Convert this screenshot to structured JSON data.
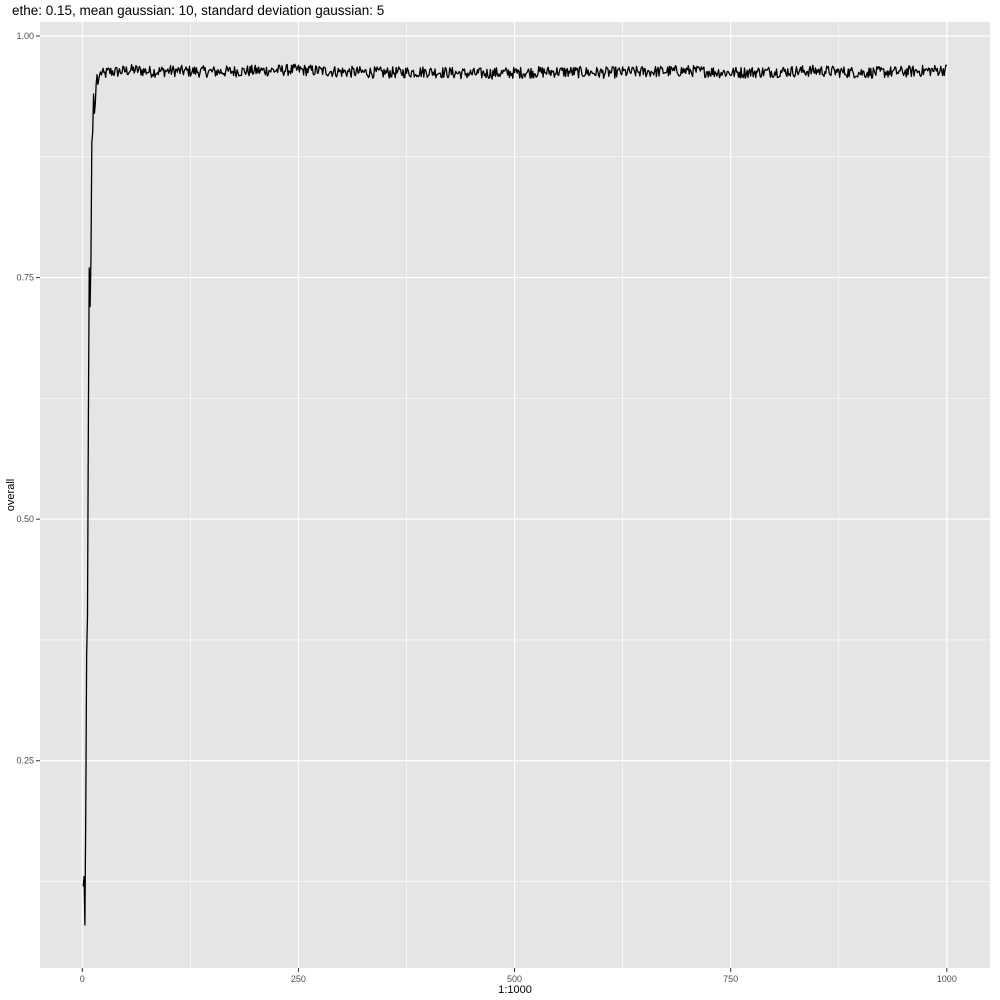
{
  "chart_data": {
    "type": "line",
    "title": "ethe: 0.15, mean gaussian: 10, standard deviation gaussian: 5",
    "xlabel": "1:1000",
    "ylabel": "overall",
    "xlim": [
      1,
      1000
    ],
    "ylim": [
      0.08,
      0.97
    ],
    "x_ticks": [
      0,
      250,
      500,
      750,
      1000
    ],
    "x_tick_labels": [
      "0",
      "250",
      "500",
      "750",
      "1000"
    ],
    "y_ticks": [
      0.25,
      0.5,
      0.75,
      1.0
    ],
    "y_tick_labels": [
      "0.25",
      "0.50",
      "0.75",
      "1.00"
    ],
    "grid": true,
    "legend": "none",
    "colors": {
      "panel": "#e5e5e5",
      "grid": "#ffffff",
      "line": "#000000"
    },
    "series": [
      {
        "anchors_x": [
          1,
          2,
          3,
          4,
          5,
          6,
          7,
          8,
          9,
          10,
          11,
          12,
          13,
          14,
          15,
          16,
          17,
          18,
          19,
          20,
          22,
          25,
          30,
          40,
          60,
          80,
          100,
          150,
          200,
          250,
          300,
          350,
          400,
          450,
          500,
          550,
          600,
          650,
          700,
          750,
          800,
          850,
          900,
          950,
          1000
        ],
        "anchors_y": [
          0.12,
          0.13,
          0.08,
          0.2,
          0.36,
          0.4,
          0.6,
          0.76,
          0.72,
          0.77,
          0.89,
          0.9,
          0.94,
          0.92,
          0.93,
          0.95,
          0.96,
          0.95,
          0.955,
          0.96,
          0.962,
          0.96,
          0.963,
          0.963,
          0.965,
          0.963,
          0.964,
          0.963,
          0.964,
          0.965,
          0.963,
          0.962,
          0.963,
          0.961,
          0.962,
          0.963,
          0.962,
          0.963,
          0.964,
          0.962,
          0.963,
          0.964,
          0.962,
          0.963,
          0.965
        ],
        "noise_from_x": 20,
        "noise_amplitude": 0.006
      }
    ]
  }
}
